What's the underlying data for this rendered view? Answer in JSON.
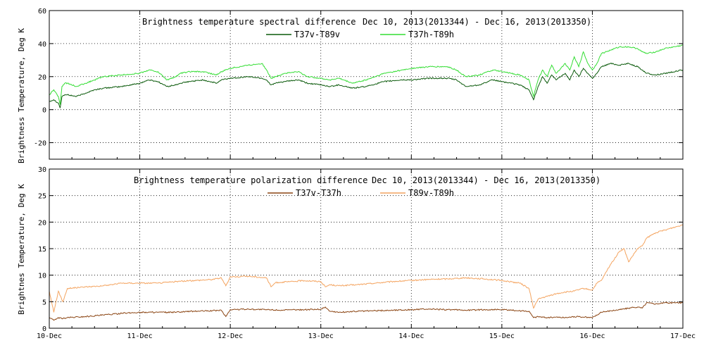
{
  "chart_data": [
    {
      "type": "line",
      "title": "Brightness temperature spectral difference",
      "subtitle": "Dec 10, 2013(2013344) - Dec 16, 2013(2013350)",
      "ylabel": "Brightness Temperature, Deg K",
      "xlabel": "",
      "ylim": [
        -30,
        60
      ],
      "yticks": [
        -20,
        0,
        20,
        40,
        60
      ],
      "xlim": [
        0,
        7
      ],
      "xticks": [
        0,
        1,
        2,
        3,
        4,
        5,
        6,
        7
      ],
      "xtick_labels": [
        "10-Dec",
        "11-Dec",
        "12-Dec",
        "13-Dec",
        "14-Dec",
        "15-Dec",
        "16-Dec",
        "17-Dec"
      ],
      "grid": "dotted",
      "legend": "top-center",
      "series": [
        {
          "name": "T37v-T89v",
          "color": "#0b5a0b",
          "x": [
            0,
            0.05,
            0.1,
            0.12,
            0.14,
            0.17,
            0.2,
            0.3,
            0.4,
            0.5,
            0.6,
            0.8,
            1.0,
            1.1,
            1.2,
            1.3,
            1.4,
            1.45,
            1.55,
            1.7,
            1.85,
            1.9,
            2.0,
            2.2,
            2.35,
            2.4,
            2.45,
            2.5,
            2.6,
            2.75,
            2.85,
            3.0,
            3.1,
            3.2,
            3.35,
            3.5,
            3.7,
            3.9,
            4.0,
            4.2,
            4.4,
            4.5,
            4.6,
            4.75,
            4.9,
            5.0,
            5.1,
            5.2,
            5.3,
            5.35,
            5.4,
            5.45,
            5.5,
            5.55,
            5.6,
            5.7,
            5.75,
            5.8,
            5.85,
            5.9,
            5.95,
            6.0,
            6.05,
            6.1,
            6.2,
            6.3,
            6.4,
            6.5,
            6.55,
            6.6,
            6.7,
            6.8,
            7.0
          ],
          "values": [
            5,
            6,
            4,
            1,
            8,
            9,
            9,
            8,
            10,
            12,
            13,
            14,
            16,
            18,
            17,
            14,
            15,
            16,
            17,
            18,
            16,
            18,
            19,
            20,
            19,
            18,
            15,
            16,
            17,
            18,
            16,
            15,
            14,
            15,
            13,
            14,
            17,
            18,
            18,
            19,
            19,
            18,
            14,
            15,
            18,
            17,
            16,
            15,
            12,
            6,
            14,
            20,
            16,
            21,
            18,
            22,
            18,
            24,
            20,
            25,
            22,
            19,
            22,
            26,
            28,
            27,
            28,
            26,
            24,
            22,
            21,
            22,
            24
          ]
        },
        {
          "name": "T37h-T89h",
          "color": "#33dd33",
          "x": [
            0,
            0.05,
            0.1,
            0.12,
            0.14,
            0.17,
            0.2,
            0.3,
            0.4,
            0.5,
            0.6,
            0.8,
            1.0,
            1.1,
            1.2,
            1.3,
            1.4,
            1.45,
            1.55,
            1.7,
            1.85,
            1.9,
            2.0,
            2.2,
            2.35,
            2.4,
            2.45,
            2.5,
            2.6,
            2.75,
            2.85,
            3.0,
            3.1,
            3.2,
            3.35,
            3.5,
            3.7,
            3.9,
            4.0,
            4.2,
            4.4,
            4.5,
            4.6,
            4.75,
            4.9,
            5.0,
            5.1,
            5.2,
            5.3,
            5.35,
            5.4,
            5.45,
            5.5,
            5.55,
            5.6,
            5.7,
            5.75,
            5.8,
            5.85,
            5.9,
            5.95,
            6.0,
            6.05,
            6.1,
            6.2,
            6.3,
            6.4,
            6.5,
            6.55,
            6.6,
            6.7,
            6.8,
            7.0
          ],
          "values": [
            9,
            12,
            8,
            3,
            14,
            16,
            16,
            14,
            16,
            18,
            20,
            21,
            22,
            24,
            23,
            18,
            20,
            22,
            23,
            23,
            21,
            23,
            25,
            27,
            28,
            24,
            19,
            20,
            22,
            23,
            20,
            19,
            18,
            19,
            16,
            18,
            22,
            24,
            25,
            26,
            26,
            24,
            20,
            21,
            24,
            23,
            22,
            21,
            18,
            8,
            18,
            24,
            20,
            27,
            22,
            28,
            24,
            32,
            26,
            35,
            28,
            24,
            28,
            34,
            36,
            38,
            38,
            37,
            35,
            34,
            35,
            37,
            39
          ]
        }
      ]
    },
    {
      "type": "line",
      "title": "Brightness temperature polarization difference",
      "subtitle": "Dec 10, 2013(2013344) - Dec 16, 2013(2013350)",
      "ylabel": "Brightnes Temperature, Deg K",
      "xlabel": "",
      "ylim": [
        0,
        30
      ],
      "yticks": [
        0,
        5,
        10,
        15,
        20,
        25,
        30
      ],
      "xlim": [
        0,
        7
      ],
      "xticks": [
        0,
        1,
        2,
        3,
        4,
        5,
        6,
        7
      ],
      "xtick_labels": [
        "10-Dec",
        "11-Dec",
        "12-Dec",
        "13-Dec",
        "14-Dec",
        "15-Dec",
        "16-Dec",
        "17-Dec"
      ],
      "grid": "dotted",
      "legend": "top-center",
      "series": [
        {
          "name": "T37v-T37h",
          "color": "#8b4513",
          "x": [
            0,
            0.05,
            0.1,
            0.15,
            0.2,
            0.4,
            0.6,
            0.8,
            1.0,
            1.2,
            1.4,
            1.6,
            1.8,
            1.9,
            1.95,
            2.0,
            2.2,
            2.4,
            2.6,
            2.8,
            3.0,
            3.05,
            3.1,
            3.2,
            3.4,
            3.6,
            3.8,
            4.0,
            4.2,
            4.4,
            4.6,
            4.8,
            5.0,
            5.2,
            5.3,
            5.35,
            5.4,
            5.5,
            5.6,
            5.7,
            5.8,
            5.9,
            6.0,
            6.1,
            6.2,
            6.3,
            6.4,
            6.5,
            6.55,
            6.6,
            6.7,
            6.8,
            7.0
          ],
          "values": [
            2,
            1.5,
            2,
            1.8,
            2,
            2.2,
            2.5,
            2.8,
            3,
            3,
            3,
            3.2,
            3.3,
            3.4,
            2.2,
            3.5,
            3.6,
            3.5,
            3.4,
            3.5,
            3.6,
            4,
            3.2,
            3,
            3.2,
            3.3,
            3.4,
            3.5,
            3.6,
            3.5,
            3.4,
            3.5,
            3.5,
            3.3,
            3.2,
            2,
            2.2,
            2,
            2.1,
            2,
            2.2,
            2.1,
            2,
            3,
            3.3,
            3.5,
            3.8,
            4,
            3.8,
            4.8,
            4.6,
            4.8,
            4.8
          ]
        },
        {
          "name": "T89v-T89h",
          "color": "#f4a460",
          "x": [
            0,
            0.05,
            0.1,
            0.15,
            0.2,
            0.4,
            0.6,
            0.8,
            1.0,
            1.2,
            1.4,
            1.6,
            1.8,
            1.9,
            1.95,
            2.0,
            2.2,
            2.4,
            2.45,
            2.5,
            2.7,
            2.8,
            3.0,
            3.05,
            3.1,
            3.2,
            3.4,
            3.6,
            3.8,
            4.0,
            4.2,
            4.4,
            4.6,
            4.8,
            5.0,
            5.2,
            5.3,
            5.35,
            5.4,
            5.5,
            5.6,
            5.7,
            5.8,
            5.9,
            6.0,
            6.05,
            6.1,
            6.2,
            6.3,
            6.35,
            6.4,
            6.5,
            6.55,
            6.6,
            6.7,
            6.8,
            7.0
          ],
          "values": [
            7,
            3,
            7,
            5,
            7.5,
            7.8,
            8,
            8.5,
            8.5,
            8.5,
            8.8,
            9,
            9.2,
            9.5,
            8,
            9.7,
            9.8,
            9.5,
            7.8,
            8.6,
            8.8,
            9,
            8.8,
            7.8,
            8.2,
            8,
            8.2,
            8.5,
            8.8,
            9,
            9.2,
            9.3,
            9.5,
            9.3,
            9,
            8.5,
            7.5,
            3.8,
            5.5,
            6,
            6.5,
            6.8,
            7,
            7.5,
            7.2,
            8.5,
            9,
            12,
            14.5,
            15,
            12.5,
            15,
            15.5,
            17,
            18,
            18.5,
            19.5
          ]
        }
      ]
    }
  ]
}
